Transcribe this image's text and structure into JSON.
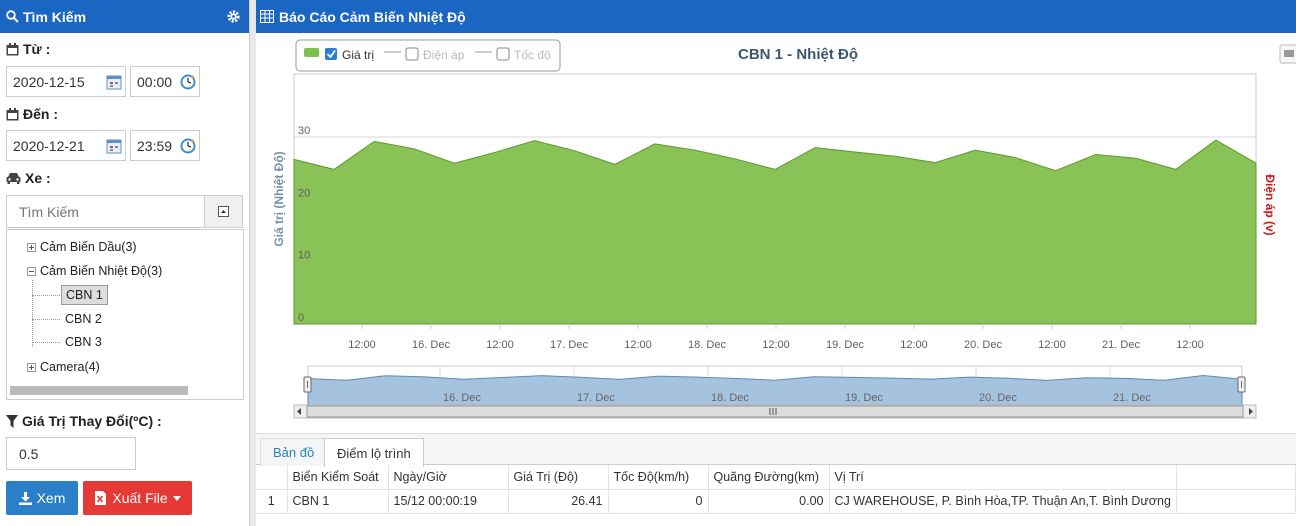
{
  "search_panel": {
    "title": "Tìm Kiếm",
    "from_label": "Từ :",
    "from_date": "2020-12-15",
    "from_time": "00:00",
    "to_label": "Đến :",
    "to_date": "2020-12-21",
    "to_time": "23:59",
    "vehicle_label": "Xe :",
    "search_placeholder": "Tìm Kiếm",
    "tree": {
      "group1": "Cảm Biến Dầu(3)",
      "group2": "Cảm Biến Nhiệt Độ(3)",
      "leaf1": "CBN 1",
      "leaf2": "CBN 2",
      "leaf3": "CBN 3",
      "group3": "Camera(4)"
    },
    "threshold_label": "Giá Trị Thay Đổi(ºC) :",
    "threshold_value": "0.5",
    "view_button": "Xem",
    "export_button": "Xuất File"
  },
  "report_panel": {
    "title": "Báo Cáo Cảm Biến Nhiệt Độ"
  },
  "chart_data": {
    "type": "area",
    "title": "CBN 1 - Nhiệt Độ",
    "ylabel": "Giá trị (Nhiệt Độ)",
    "ylabel_right": "Điện áp (v)",
    "ylim": [
      0,
      30
    ],
    "yticks": [
      "0",
      "10",
      "20",
      "30"
    ],
    "xticks": [
      "12:00",
      "16. Dec",
      "12:00",
      "17. Dec",
      "12:00",
      "18. Dec",
      "12:00",
      "19. Dec",
      "12:00",
      "20. Dec",
      "12:00",
      "21. Dec",
      "12:00"
    ],
    "navigator_ticks": [
      "16. Dec",
      "17. Dec",
      "18. Dec",
      "19. Dec",
      "20. Dec",
      "21. Dec"
    ],
    "legend": [
      {
        "name": "Giá trị",
        "checked": true,
        "color": "#7cc04a"
      },
      {
        "name": "Điện áp",
        "checked": false,
        "color": "#cccccc"
      },
      {
        "name": "Tốc độ",
        "checked": false,
        "color": "#cccccc"
      }
    ],
    "legend_position": "top-left",
    "grid": true,
    "x_hours": [
      0,
      6,
      12,
      18,
      24,
      30,
      36,
      42,
      48,
      54,
      60,
      66,
      72,
      78,
      84,
      90,
      96,
      102,
      108,
      114,
      120,
      126,
      132,
      138,
      144
    ],
    "values": [
      26.4,
      24.8,
      29.3,
      28.1,
      25.8,
      27.5,
      29.4,
      27.8,
      25.6,
      28.9,
      27.9,
      26.5,
      24.8,
      28.3,
      27.6,
      26.9,
      25.9,
      27.9,
      26.7,
      24.6,
      27.2,
      26.6,
      24.8,
      29.5,
      25.8
    ]
  },
  "tabs": {
    "map": "Bản đồ",
    "route": "Điểm lộ trình"
  },
  "table": {
    "headers": [
      "",
      "Biển Kiểm Soát",
      "Ngày/Giờ",
      "Giá Trị (Độ)",
      "Tốc Độ(km/h)",
      "Quãng Đường(km)",
      "Vị Trí"
    ],
    "rows": [
      [
        "1",
        "CBN 1",
        "15/12 00:00:19",
        "26.41",
        "0",
        "0.00",
        "CJ WAREHOUSE, P. Bình Hòa,TP. Thuận An,T. Bình Dương"
      ]
    ]
  }
}
